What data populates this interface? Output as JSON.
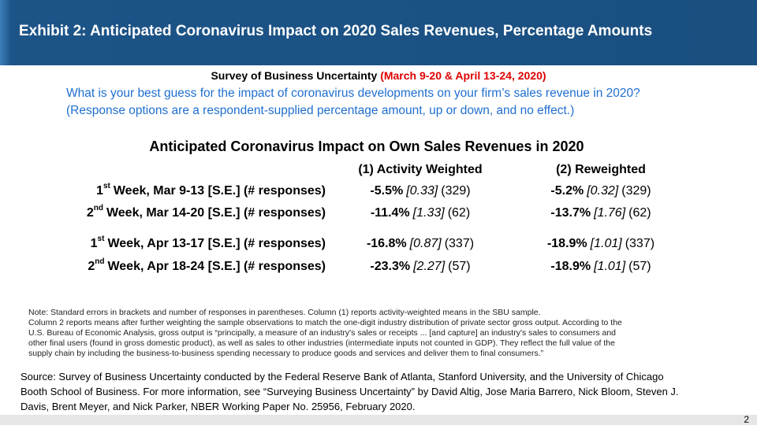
{
  "header": {
    "title": "Exhibit 2: Anticipated Coronavirus Impact on 2020 Sales Revenues, Percentage Amounts"
  },
  "subtitle": {
    "text": "Survey of Business Uncertainty",
    "dates": "(March 9-20 & April 13-24, 2020)"
  },
  "question": [
    "What is your best guess for the impact of coronavirus developments on your firm’s sales revenue in 2020?",
    "(Response options are a respondent-supplied percentage amount, up or down, and no effect.)"
  ],
  "table": {
    "title": "Anticipated Coronavirus Impact on Own Sales Revenues in 2020",
    "columns": [
      "(1) Activity Weighted",
      "(2) Reweighted"
    ],
    "rows": [
      {
        "ordinal": "1",
        "suffix": "st",
        "label": "Week, Mar 9-13 [S.E.] (# responses)",
        "cells": [
          {
            "mean": "-5.5%",
            "se": "[0.33]",
            "n": "(329)"
          },
          {
            "mean": "-5.2%",
            "se": "[0.32]",
            "n": "(329)"
          }
        ]
      },
      {
        "ordinal": "2",
        "suffix": "nd",
        "label": "Week, Mar 14-20 [S.E.] (# responses)",
        "cells": [
          {
            "mean": "-11.4%",
            "se": "[1.33]",
            "n": "(62)"
          },
          {
            "mean": "-13.7%",
            "se": "[1.76]",
            "n": "(62)"
          }
        ]
      },
      {
        "ordinal": "1",
        "suffix": "st",
        "label": "Week, Apr 13-17 [S.E.] (# responses)",
        "cells": [
          {
            "mean": "-16.8%",
            "se": "[0.87]",
            "n": "(337)"
          },
          {
            "mean": "-18.9%",
            "se": "[1.01]",
            "n": "(337)"
          }
        ]
      },
      {
        "ordinal": "2",
        "suffix": "nd",
        "label": "Week, Apr 18-24 [S.E.] (# responses)",
        "cells": [
          {
            "mean": "-23.3%",
            "se": "[2.27]",
            "n": "(57)"
          },
          {
            "mean": "-18.9%",
            "se": "[1.01]",
            "n": "(57)"
          }
        ]
      }
    ]
  },
  "note": [
    "Note: Standard errors in brackets and number of responses in parentheses. Column (1) reports activity-weighted means in the SBU sample.",
    "Column 2 reports means after further weighting the sample observations to match the one-digit industry distribution of private sector gross output. According to the",
    "U.S. Bureau of Economic Analysis, gross output is “principally, a measure of an industry's sales or receipts ... [and capture] an industry's sales to consumers and",
    "other final users (found in gross domestic product), as well as sales to other industries (intermediate inputs not counted in GDP). They reflect the full value of the",
    "supply chain by including the business-to-business spending necessary to produce goods and services and deliver them to final consumers.”"
  ],
  "source": [
    "Source: Survey of Business Uncertainty conducted by the Federal Reserve Bank of Atlanta, Stanford University, and the University of Chicago",
    "Booth School of Business. For more information, see “Surveying Business Uncertainty” by David Altig, Jose Maria Barrero, Nick Bloom, Steven J.",
    "Davis, Brent Meyer, and Nick Parker, NBER Working Paper No. 25956, February 2020."
  ],
  "page": "2"
}
